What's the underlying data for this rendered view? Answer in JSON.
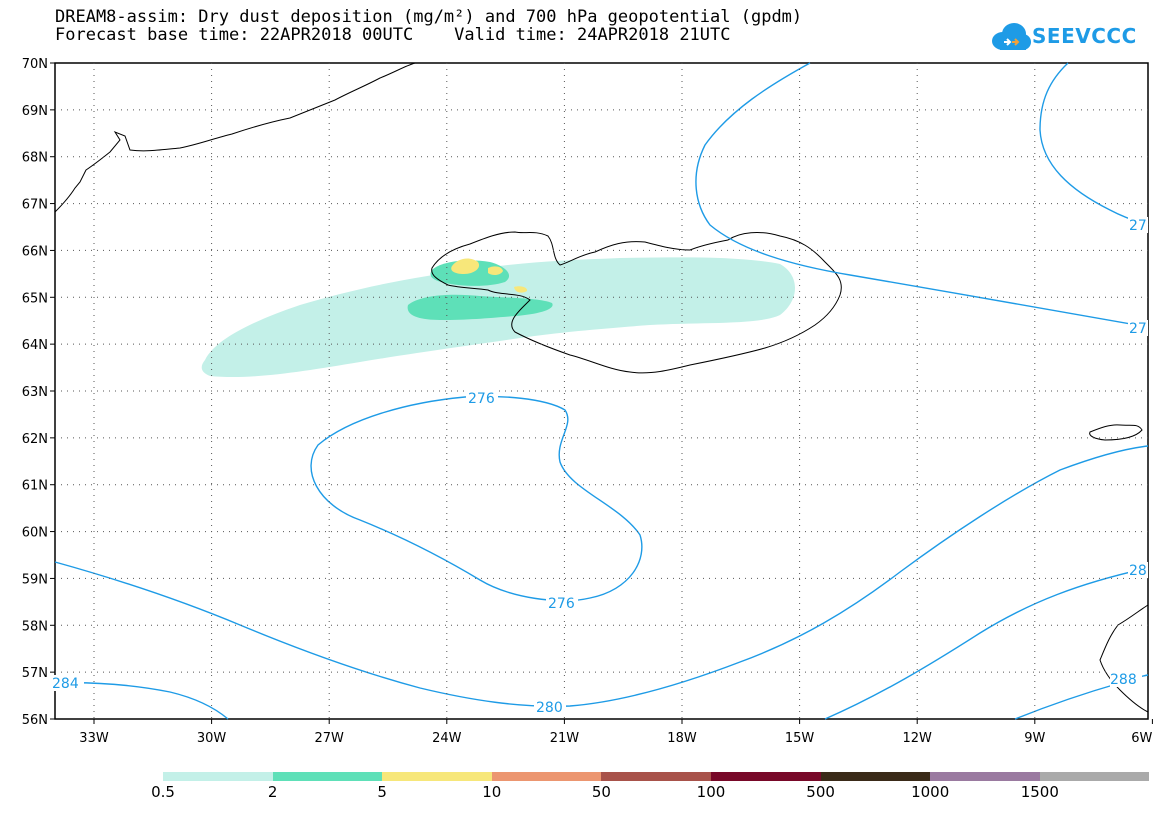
{
  "header": {
    "title_line1": "DREAM8-assim: Dry dust deposition (mg/m²) and 700 hPa geopotential (gpdm)",
    "title_line2": "Forecast base time: 22APR2018 00UTC    Valid time: 24APR2018 21UTC"
  },
  "logo": {
    "text": "SEEVCCC",
    "icon": "cloud-logo-icon",
    "color": "#1e9be6"
  },
  "map": {
    "lat_labels": [
      "70N",
      "69N",
      "68N",
      "67N",
      "66N",
      "65N",
      "64N",
      "63N",
      "62N",
      "61N",
      "60N",
      "59N",
      "58N",
      "57N",
      "56N"
    ],
    "lon_labels": [
      "33W",
      "30W",
      "27W",
      "24W",
      "21W",
      "18W",
      "15W",
      "12W",
      "9W",
      "6W"
    ],
    "contour_color": "#1e9be6",
    "contour_labels": [
      {
        "id": "c276a",
        "text": "276"
      },
      {
        "id": "c276b",
        "text": "276"
      },
      {
        "id": "c280",
        "text": "280"
      },
      {
        "id": "c284",
        "text": "284"
      },
      {
        "id": "c27a",
        "text": "27"
      },
      {
        "id": "c27b",
        "text": "27"
      },
      {
        "id": "c28",
        "text": "28"
      },
      {
        "id": "c288",
        "text": "288"
      }
    ]
  },
  "legend": {
    "colors": [
      "#c3f0e8",
      "#5ee0b8",
      "#f7e77a",
      "#ec9670",
      "#a8524a",
      "#780828",
      "#3a2a18",
      "#9a7aa0",
      "#aaaaaa"
    ],
    "labels": [
      "0.5",
      "2",
      "5",
      "10",
      "50",
      "100",
      "500",
      "1000",
      "1500"
    ]
  }
}
